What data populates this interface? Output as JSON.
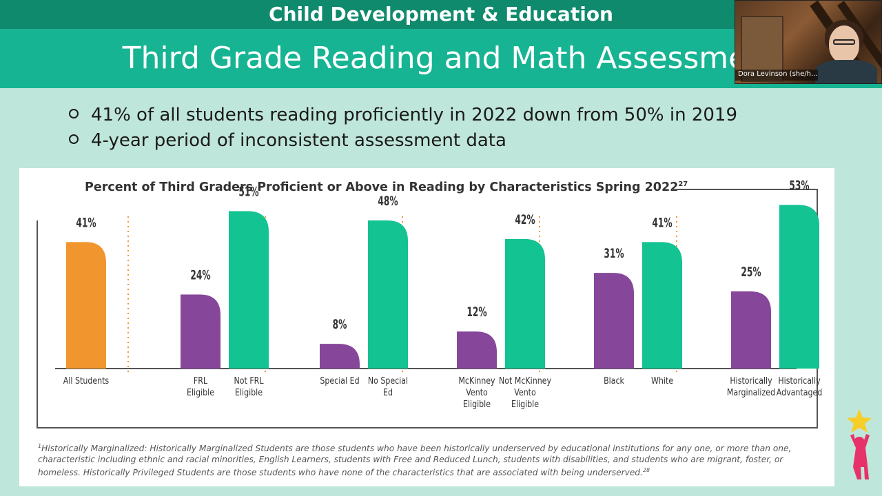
{
  "header": {
    "category": "Child Development & Education",
    "title": "Third Grade Reading and Math Assessmer"
  },
  "video": {
    "participant_name": "Dora Levinson (she/h..."
  },
  "bullets": [
    "41% of all students reading proficiently in 2022 down from 50% in 2019",
    "4-year period of inconsistent assessment data"
  ],
  "colors": {
    "all_students": "#f1962f",
    "group_a": "#86479a",
    "group_b": "#13c391",
    "divider": "#f1962f"
  },
  "chart_data": {
    "type": "bar",
    "title": "Percent of Third Graders Proficient or Above in Reading by Characteristics Spring 2022",
    "title_ref": "27",
    "ylim": [
      0,
      60
    ],
    "groups": [
      {
        "bars": [
          {
            "label": "All Students",
            "value": 41,
            "label_text": "41%",
            "color_key": "all_students"
          }
        ]
      },
      {
        "bars": [
          {
            "label": "FRL Eligible",
            "value": 24,
            "label_text": "24%",
            "color_key": "group_a"
          },
          {
            "label": "Not FRL Eligible",
            "value": 51,
            "label_text": "51%",
            "color_key": "group_b"
          }
        ]
      },
      {
        "bars": [
          {
            "label": "Special Ed",
            "value": 8,
            "label_text": "8%",
            "color_key": "group_a"
          },
          {
            "label": "No Special Ed",
            "value": 48,
            "label_text": "48%",
            "color_key": "group_b"
          }
        ]
      },
      {
        "bars": [
          {
            "label": "McKinney Vento Eligible",
            "value": 12,
            "label_text": "12%",
            "color_key": "group_a"
          },
          {
            "label": "Not McKinney Vento Eligible",
            "value": 42,
            "label_text": "42%",
            "color_key": "group_b"
          }
        ]
      },
      {
        "bars": [
          {
            "label": "Black",
            "value": 31,
            "label_text": "31%",
            "color_key": "group_a"
          },
          {
            "label": "White",
            "value": 41,
            "label_text": "41%",
            "color_key": "group_b"
          }
        ]
      },
      {
        "bars": [
          {
            "label": "Historically Marginalized",
            "value": 25,
            "label_text": "25%",
            "color_key": "group_a"
          },
          {
            "label": "Historically Advantaged",
            "value": 53,
            "label_text": "53%",
            "color_key": "group_b"
          }
        ]
      }
    ],
    "category_label_lines": [
      [
        "All Students"
      ],
      [
        "FRL",
        "Eligible"
      ],
      [
        "Not FRL",
        "Eligible"
      ],
      [
        "Special Ed"
      ],
      [
        "No Special",
        "Ed"
      ],
      [
        "McKinney",
        "Vento",
        "Eligible"
      ],
      [
        "Not McKinney",
        "Vento",
        "Eligible"
      ],
      [
        "Black"
      ],
      [
        "White"
      ],
      [
        "Historically",
        "Marginalized"
      ],
      [
        "Historically",
        "Advantaged"
      ]
    ]
  },
  "footnote": {
    "ref": "1",
    "text": "Historically Marginalized: Historically Marginalized Students are those students who have been historically underserved by educational institutions for any one, or more than one, characteristic including ethnic and racial minorities, English Learners, students with Free and Reduced Lunch, students with disabilities, and students who are migrant, foster, or homeless. Historically Privileged Students are those students who have none of the characteristics that are associated with being underserved.",
    "end_ref": "28"
  }
}
